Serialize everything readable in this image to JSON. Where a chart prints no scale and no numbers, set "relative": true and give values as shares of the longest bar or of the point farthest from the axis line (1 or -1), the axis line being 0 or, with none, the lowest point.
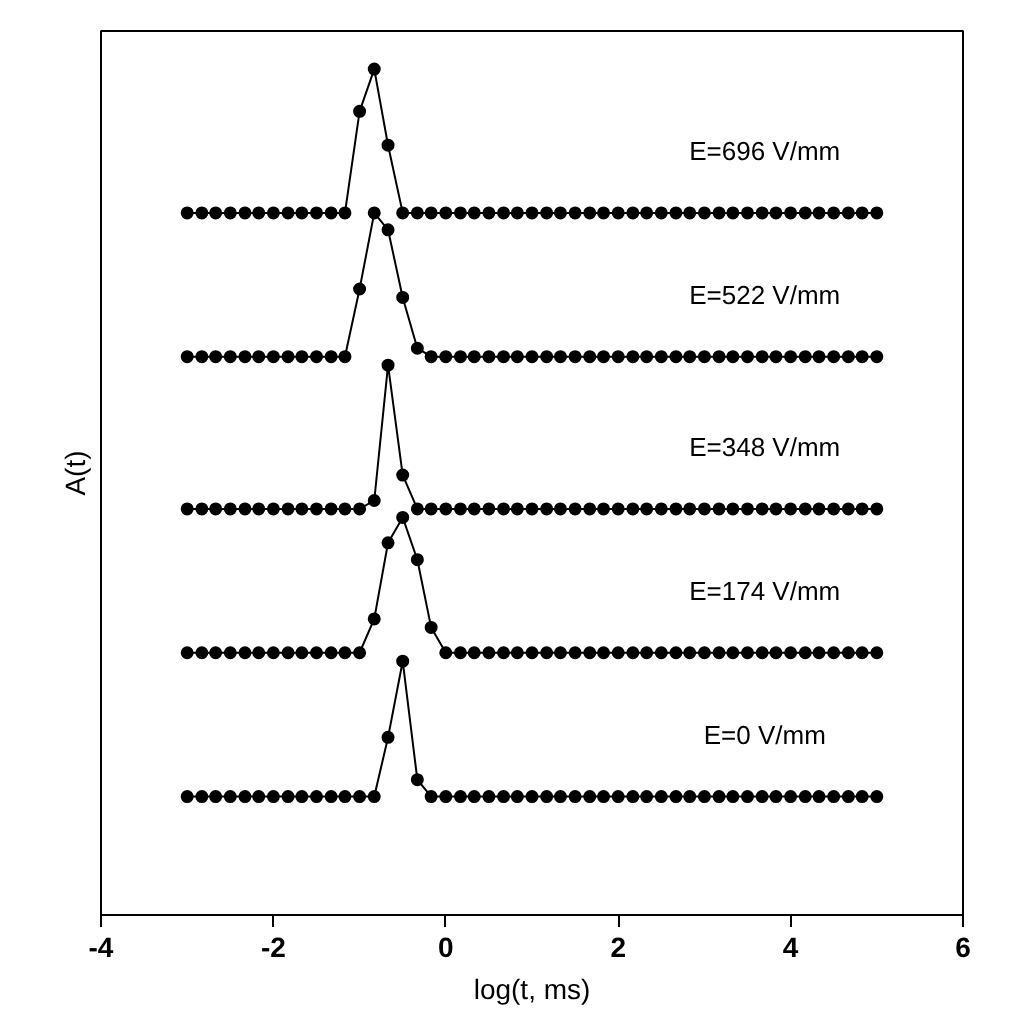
{
  "chart_data": {
    "type": "line",
    "relative": true,
    "xlabel": "log(t, ms)",
    "ylabel": "A(t)",
    "xlim": [
      -4,
      6
    ],
    "xticks": [
      -4,
      -2,
      0,
      2,
      4,
      6
    ],
    "grid": false,
    "marker": "circle",
    "line_style": "solid",
    "x": [
      -3,
      -2.83,
      -2.67,
      -2.5,
      -2.33,
      -2.17,
      -2,
      -1.83,
      -1.67,
      -1.5,
      -1.33,
      -1.17,
      -1,
      -0.83,
      -0.67,
      -0.5,
      -0.33,
      -0.17,
      0,
      0.17,
      0.33,
      0.5,
      0.67,
      0.83,
      1,
      1.17,
      1.33,
      1.5,
      1.67,
      1.83,
      2,
      2.17,
      2.33,
      2.5,
      2.67,
      2.83,
      3,
      3.17,
      3.33,
      3.5,
      3.67,
      3.83,
      4,
      4.17,
      4.33,
      4.5,
      4.67,
      4.83,
      5
    ],
    "series": [
      {
        "name": "E=0 V/mm",
        "color": "#000000",
        "values": [
          0.14,
          0.14,
          0.14,
          0.14,
          0.14,
          0.14,
          0.14,
          0.14,
          0.14,
          0.14,
          0.14,
          0.14,
          0.14,
          0.14,
          0.21,
          0.3,
          0.16,
          0.14,
          0.14,
          0.14,
          0.14,
          0.14,
          0.14,
          0.14,
          0.14,
          0.14,
          0.14,
          0.14,
          0.14,
          0.14,
          0.14,
          0.14,
          0.14,
          0.14,
          0.14,
          0.14,
          0.14,
          0.14,
          0.14,
          0.14,
          0.14,
          0.14,
          0.14,
          0.14,
          0.14,
          0.14,
          0.14,
          0.14,
          0.14
        ]
      },
      {
        "name": "E=174 V/mm",
        "color": "#000000",
        "values": [
          0.31,
          0.31,
          0.31,
          0.31,
          0.31,
          0.31,
          0.31,
          0.31,
          0.31,
          0.31,
          0.31,
          0.31,
          0.31,
          0.35,
          0.44,
          0.47,
          0.42,
          0.34,
          0.31,
          0.31,
          0.31,
          0.31,
          0.31,
          0.31,
          0.31,
          0.31,
          0.31,
          0.31,
          0.31,
          0.31,
          0.31,
          0.31,
          0.31,
          0.31,
          0.31,
          0.31,
          0.31,
          0.31,
          0.31,
          0.31,
          0.31,
          0.31,
          0.31,
          0.31,
          0.31,
          0.31,
          0.31,
          0.31,
          0.31
        ]
      },
      {
        "name": "E=348 V/mm",
        "color": "#000000",
        "values": [
          0.48,
          0.48,
          0.48,
          0.48,
          0.48,
          0.48,
          0.48,
          0.48,
          0.48,
          0.48,
          0.48,
          0.48,
          0.48,
          0.49,
          0.65,
          0.52,
          0.48,
          0.48,
          0.48,
          0.48,
          0.48,
          0.48,
          0.48,
          0.48,
          0.48,
          0.48,
          0.48,
          0.48,
          0.48,
          0.48,
          0.48,
          0.48,
          0.48,
          0.48,
          0.48,
          0.48,
          0.48,
          0.48,
          0.48,
          0.48,
          0.48,
          0.48,
          0.48,
          0.48,
          0.48,
          0.48,
          0.48,
          0.48,
          0.48
        ]
      },
      {
        "name": "E=522 V/mm",
        "color": "#000000",
        "values": [
          0.66,
          0.66,
          0.66,
          0.66,
          0.66,
          0.66,
          0.66,
          0.66,
          0.66,
          0.66,
          0.66,
          0.66,
          0.74,
          0.83,
          0.81,
          0.73,
          0.67,
          0.66,
          0.66,
          0.66,
          0.66,
          0.66,
          0.66,
          0.66,
          0.66,
          0.66,
          0.66,
          0.66,
          0.66,
          0.66,
          0.66,
          0.66,
          0.66,
          0.66,
          0.66,
          0.66,
          0.66,
          0.66,
          0.66,
          0.66,
          0.66,
          0.66,
          0.66,
          0.66,
          0.66,
          0.66,
          0.66,
          0.66,
          0.66
        ]
      },
      {
        "name": "E=696 V/mm",
        "color": "#000000",
        "values": [
          0.83,
          0.83,
          0.83,
          0.83,
          0.83,
          0.83,
          0.83,
          0.83,
          0.83,
          0.83,
          0.83,
          0.83,
          0.95,
          1,
          0.91,
          0.83,
          0.83,
          0.83,
          0.83,
          0.83,
          0.83,
          0.83,
          0.83,
          0.83,
          0.83,
          0.83,
          0.83,
          0.83,
          0.83,
          0.83,
          0.83,
          0.83,
          0.83,
          0.83,
          0.83,
          0.83,
          0.83,
          0.83,
          0.83,
          0.83,
          0.83,
          0.83,
          0.83,
          0.83,
          0.83,
          0.83,
          0.83,
          0.83,
          0.83
        ]
      }
    ]
  }
}
